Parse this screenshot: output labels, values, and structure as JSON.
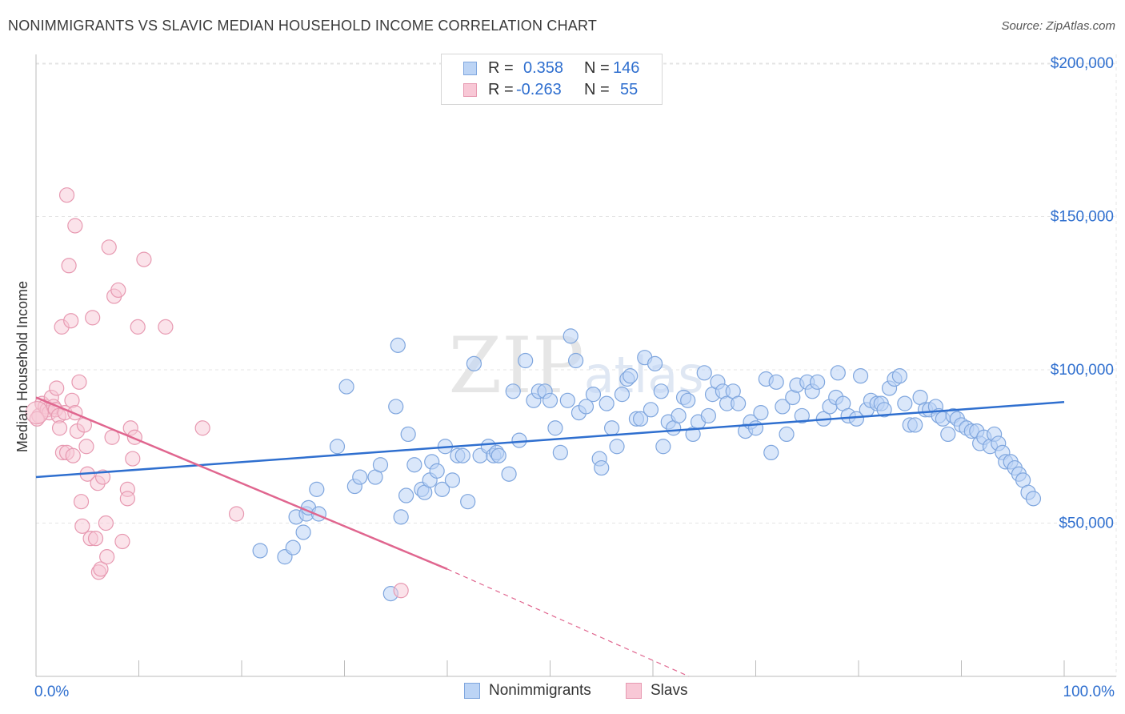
{
  "title": "NONIMMIGRANTS VS SLAVIC MEDIAN HOUSEHOLD INCOME CORRELATION CHART",
  "source": "Source: ZipAtlas.com",
  "watermark": "ZIPatlas",
  "legend_stats": {
    "r_label": "R =",
    "n_label": "N =",
    "series1": {
      "r": "0.358",
      "n": "146"
    },
    "series2": {
      "r": "-0.263",
      "n": "55"
    }
  },
  "chart_data": {
    "type": "scatter",
    "title": "NONIMMIGRANTS VS SLAVIC MEDIAN HOUSEHOLD INCOME CORRELATION CHART",
    "xlabel": "",
    "ylabel": "Median Household Income",
    "x_unit": "%",
    "xlim": [
      0,
      100
    ],
    "ylim": [
      0,
      210000
    ],
    "x_tick_labels": [
      "0.0%",
      "100.0%"
    ],
    "y_ticks": [
      50000,
      100000,
      150000,
      200000
    ],
    "y_tick_labels": [
      "$50,000",
      "$100,000",
      "$150,000",
      "$200,000"
    ],
    "grid": true,
    "legend_position": "top-center",
    "colors": {
      "nonimmigrants": "#7fa6de",
      "nonimmigrants_fill": "#bcd4f5",
      "nonimmigrants_line": "#2f6fcf",
      "slavs": "#e799b1",
      "slavs_fill": "#f8c8d6",
      "slavs_line": "#e0668f",
      "axis_label": "#2f6fcf"
    },
    "series": [
      {
        "name": "Nonimmigrants",
        "r": 0.358,
        "n": 146,
        "trend": {
          "x": [
            0,
            100
          ],
          "y": [
            65000,
            89500
          ]
        },
        "points": [
          [
            21.8,
            41000
          ],
          [
            24.2,
            39000
          ],
          [
            25,
            42000
          ],
          [
            25.3,
            52000
          ],
          [
            26,
            47000
          ],
          [
            26.3,
            53000
          ],
          [
            26.5,
            55000
          ],
          [
            27.3,
            61000
          ],
          [
            27.5,
            53000
          ],
          [
            29.3,
            75000
          ],
          [
            30.2,
            94500
          ],
          [
            31,
            62000
          ],
          [
            31.5,
            65000
          ],
          [
            33,
            65000
          ],
          [
            33.5,
            69000
          ],
          [
            34.5,
            27000
          ],
          [
            35,
            88000
          ],
          [
            35.2,
            108000
          ],
          [
            35.5,
            52000
          ],
          [
            36,
            59000
          ],
          [
            36.2,
            79000
          ],
          [
            36.8,
            69000
          ],
          [
            37.5,
            61000
          ],
          [
            37.8,
            60000
          ],
          [
            38.3,
            64000
          ],
          [
            38.5,
            70000
          ],
          [
            39,
            67000
          ],
          [
            39.5,
            61000
          ],
          [
            39.8,
            75000
          ],
          [
            40.5,
            64000
          ],
          [
            41,
            72000
          ],
          [
            41.5,
            72000
          ],
          [
            42,
            57000
          ],
          [
            42.6,
            102000
          ],
          [
            43.2,
            72000
          ],
          [
            44,
            75000
          ],
          [
            44.5,
            72000
          ],
          [
            44.8,
            73000
          ],
          [
            45,
            72000
          ],
          [
            46,
            66000
          ],
          [
            46.4,
            93000
          ],
          [
            47,
            77000
          ],
          [
            47.6,
            103000
          ],
          [
            48.4,
            90000
          ],
          [
            48.9,
            93000
          ],
          [
            49.5,
            93000
          ],
          [
            50,
            90000
          ],
          [
            50.5,
            81000
          ],
          [
            51,
            73000
          ],
          [
            51.7,
            90000
          ],
          [
            52,
            111000
          ],
          [
            52.5,
            103000
          ],
          [
            52.8,
            86000
          ],
          [
            53.5,
            88000
          ],
          [
            54.2,
            92000
          ],
          [
            54.8,
            71000
          ],
          [
            55,
            68000
          ],
          [
            55.5,
            89000
          ],
          [
            56,
            81000
          ],
          [
            56.5,
            75000
          ],
          [
            57,
            92000
          ],
          [
            57.5,
            97000
          ],
          [
            57.8,
            98000
          ],
          [
            58.4,
            84000
          ],
          [
            58.8,
            84000
          ],
          [
            59.2,
            104000
          ],
          [
            59.8,
            87000
          ],
          [
            60.2,
            102000
          ],
          [
            60.8,
            93000
          ],
          [
            61,
            75000
          ],
          [
            61.5,
            83000
          ],
          [
            62,
            81000
          ],
          [
            62.5,
            85000
          ],
          [
            63,
            91000
          ],
          [
            63.4,
            90000
          ],
          [
            63.9,
            79000
          ],
          [
            64.4,
            83000
          ],
          [
            65,
            99000
          ],
          [
            65.4,
            85000
          ],
          [
            65.8,
            92000
          ],
          [
            66.3,
            96000
          ],
          [
            66.8,
            93000
          ],
          [
            67.2,
            89000
          ],
          [
            67.8,
            93000
          ],
          [
            68.3,
            89000
          ],
          [
            69,
            80000
          ],
          [
            69.5,
            83000
          ],
          [
            70,
            81000
          ],
          [
            70.5,
            86000
          ],
          [
            71,
            97000
          ],
          [
            71.5,
            73000
          ],
          [
            72,
            96000
          ],
          [
            72.6,
            88000
          ],
          [
            73,
            79000
          ],
          [
            73.6,
            91000
          ],
          [
            74,
            95000
          ],
          [
            74.5,
            85000
          ],
          [
            75,
            96000
          ],
          [
            75.5,
            93000
          ],
          [
            76,
            96000
          ],
          [
            76.6,
            84000
          ],
          [
            77.2,
            88000
          ],
          [
            77.8,
            91000
          ],
          [
            78,
            99000
          ],
          [
            78.5,
            89000
          ],
          [
            79,
            85000
          ],
          [
            79.8,
            84000
          ],
          [
            80.2,
            98000
          ],
          [
            80.8,
            87000
          ],
          [
            81.2,
            90000
          ],
          [
            81.8,
            89000
          ],
          [
            82.2,
            89000
          ],
          [
            82.5,
            87000
          ],
          [
            83,
            94000
          ],
          [
            83.5,
            97000
          ],
          [
            84,
            98000
          ],
          [
            84.5,
            89000
          ],
          [
            85,
            82000
          ],
          [
            85.5,
            82000
          ],
          [
            86,
            91000
          ],
          [
            86.5,
            87000
          ],
          [
            86.9,
            87000
          ],
          [
            87.5,
            88000
          ],
          [
            87.8,
            85000
          ],
          [
            88.2,
            84000
          ],
          [
            88.7,
            79000
          ],
          [
            89.2,
            85000
          ],
          [
            89.6,
            84000
          ],
          [
            90,
            82000
          ],
          [
            90.5,
            81000
          ],
          [
            91,
            80000
          ],
          [
            91.5,
            80000
          ],
          [
            91.8,
            76000
          ],
          [
            92.2,
            78000
          ],
          [
            92.8,
            75000
          ],
          [
            93.2,
            79000
          ],
          [
            93.6,
            76000
          ],
          [
            94,
            73000
          ],
          [
            94.3,
            70000
          ],
          [
            94.8,
            70000
          ],
          [
            95.2,
            68000
          ],
          [
            95.6,
            66000
          ],
          [
            96,
            64000
          ],
          [
            96.5,
            60000
          ],
          [
            97,
            58000
          ]
        ]
      },
      {
        "name": "Slavs",
        "r": -0.263,
        "n": 55,
        "trend": {
          "x": [
            0,
            40
          ],
          "y": [
            91000,
            35000
          ]
        },
        "trend_dashed": {
          "x": [
            40,
            63.5
          ],
          "y": [
            35000,
            0
          ]
        },
        "points": [
          [
            0.3,
            85000
          ],
          [
            0.6,
            89000
          ],
          [
            0.9,
            88000
          ],
          [
            1.1,
            87000
          ],
          [
            1.3,
            86000
          ],
          [
            1.5,
            91000
          ],
          [
            1.7,
            88000
          ],
          [
            1.9,
            87000
          ],
          [
            2,
            94000
          ],
          [
            2.2,
            85000
          ],
          [
            2.3,
            81000
          ],
          [
            2.5,
            114000
          ],
          [
            2.6,
            73000
          ],
          [
            2.8,
            86000
          ],
          [
            3,
            73000
          ],
          [
            3,
            157000
          ],
          [
            3.2,
            134000
          ],
          [
            3.4,
            116000
          ],
          [
            3.5,
            90000
          ],
          [
            3.6,
            72000
          ],
          [
            3.8,
            86000
          ],
          [
            4,
            80000
          ],
          [
            4.2,
            96000
          ],
          [
            4.4,
            57000
          ],
          [
            4.5,
            49000
          ],
          [
            4.7,
            82000
          ],
          [
            4.9,
            75000
          ],
          [
            5,
            66000
          ],
          [
            5.3,
            45000
          ],
          [
            5.5,
            117000
          ],
          [
            5.8,
            45000
          ],
          [
            6,
            63000
          ],
          [
            6.1,
            34000
          ],
          [
            6.3,
            35000
          ],
          [
            6.5,
            65000
          ],
          [
            6.8,
            50000
          ],
          [
            6.9,
            39000
          ],
          [
            7.1,
            140000
          ],
          [
            7.4,
            78000
          ],
          [
            7.6,
            124000
          ],
          [
            8,
            126000
          ],
          [
            8.4,
            44000
          ],
          [
            8.9,
            61000
          ],
          [
            8.9,
            58000
          ],
          [
            9.2,
            81000
          ],
          [
            9.6,
            78000
          ],
          [
            9.9,
            114000
          ],
          [
            10.5,
            136000
          ],
          [
            12.6,
            114000
          ],
          [
            16.2,
            81000
          ],
          [
            19.5,
            53000
          ],
          [
            35.5,
            28000
          ],
          [
            3.8,
            147000
          ],
          [
            9.4,
            71000
          ],
          [
            0.1,
            84000
          ]
        ]
      }
    ]
  },
  "bottom_legend": {
    "series1": "Nonimmigrants",
    "series2": "Slavs"
  }
}
